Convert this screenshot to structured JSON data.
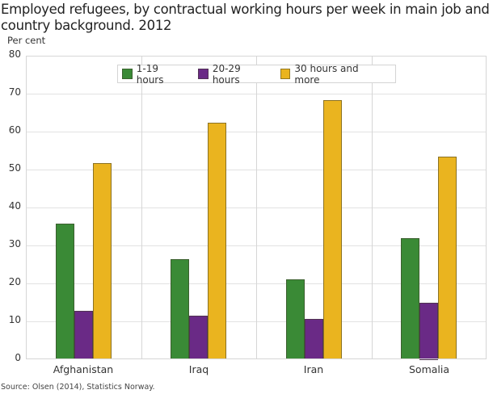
{
  "title": "Employed refugees, by contractual working hours per week in main job and country background. 2012",
  "source": "Source: Olsen (2014), Statistics Norway.",
  "chart_data": {
    "type": "bar",
    "title": "Employed refugees, by contractual working hours per week in main job and country background. 2012",
    "xlabel": "",
    "ylabel": "Per cent",
    "ylim": [
      0,
      80
    ],
    "yticks": [
      0,
      10,
      20,
      30,
      40,
      50,
      60,
      70,
      80
    ],
    "grid": true,
    "legend_position": "top-center inside",
    "categories": [
      "Afghanistan",
      "Iraq",
      "Iran",
      "Somalia"
    ],
    "series": [
      {
        "name": "1-19 hours",
        "color": "#3a8a36",
        "values": [
          35.7,
          26.4,
          21.1,
          32.0
        ]
      },
      {
        "name": "20-29 hours",
        "color": "#6a2a86",
        "values": [
          12.8,
          11.5,
          10.6,
          15.0
        ]
      },
      {
        "name": "30 hours and more",
        "color": "#eab41f",
        "values": [
          51.7,
          62.3,
          68.4,
          53.3
        ]
      }
    ]
  }
}
